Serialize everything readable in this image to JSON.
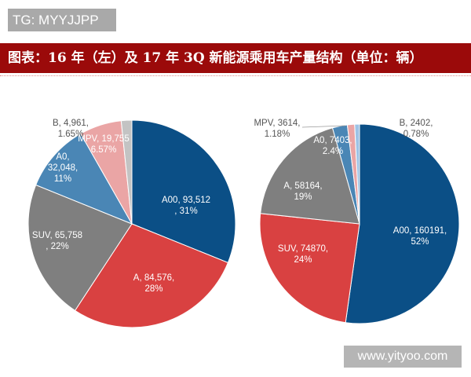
{
  "watermark": "TG: MYYJJPP",
  "title": "图表：16 年（左）及 17 年 3Q 新能源乘用车产量结构（单位：辆）",
  "site_watermark": "www.yityoo.com",
  "chart_data": [
    {
      "type": "pie",
      "title": "",
      "slices": [
        {
          "name": "A00",
          "value": 93512,
          "percent": "31%",
          "label": [
            "A00, 93,512",
            ", 31%"
          ],
          "color": "#0b4f86"
        },
        {
          "name": "A",
          "value": 84576,
          "percent": "28%",
          "label": [
            "A, 84,576,",
            "28%"
          ],
          "color": "#d94141"
        },
        {
          "name": "SUV",
          "value": 65758,
          "percent": "22%",
          "label": [
            "SUV, 65,758",
            ", 22%"
          ],
          "color": "#7f7f7f"
        },
        {
          "name": "A0",
          "value": 32048,
          "percent": "11%",
          "label": [
            "A0,",
            "32,048,",
            "11%"
          ],
          "color": "#4a86b5"
        },
        {
          "name": "MPV",
          "value": 19755,
          "percent": "6.57%",
          "label": [
            "MPV, 19,755",
            "6.57%"
          ],
          "color": "#eaa5a5"
        },
        {
          "name": "B",
          "value": 4961,
          "percent": "1.65%",
          "label": [
            "B, 4,961,",
            "1.65%"
          ],
          "color": "#c3c3c3"
        }
      ]
    },
    {
      "type": "pie",
      "title": "",
      "slices": [
        {
          "name": "A00",
          "value": 160191,
          "percent": "52%",
          "label": [
            "A00, 160191,",
            "52%"
          ],
          "color": "#0b4f86"
        },
        {
          "name": "SUV",
          "value": 74870,
          "percent": "24%",
          "label": [
            "SUV, 74870,",
            "24%"
          ],
          "color": "#d94141"
        },
        {
          "name": "A",
          "value": 58164,
          "percent": "19%",
          "label": [
            "A, 58164,",
            "19%"
          ],
          "color": "#7f7f7f"
        },
        {
          "name": "A0",
          "value": 7403,
          "percent": "2.4%",
          "label": [
            "A0, 7403,",
            "2.4%"
          ],
          "color": "#4a86b5"
        },
        {
          "name": "MPV",
          "value": 3614,
          "percent": "1.18%",
          "label": [
            "MPV, 3614,",
            "1.18%"
          ],
          "color": "#eaa5a5"
        },
        {
          "name": "B",
          "value": 2402,
          "percent": "0.78%",
          "label": [
            "B, 2402,",
            "0.78%"
          ],
          "color": "#9dc3e6"
        }
      ]
    }
  ]
}
